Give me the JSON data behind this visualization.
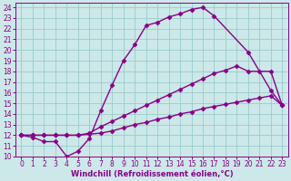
{
  "xlabel": "Windchill (Refroidissement éolien,°C)",
  "bg_color": "#cce8e8",
  "line_color": "#880088",
  "grid_color": "#99cccc",
  "xlim_min": -0.5,
  "xlim_max": 23.5,
  "ylim_min": 10,
  "ylim_max": 24.4,
  "xticks": [
    0,
    1,
    2,
    3,
    4,
    5,
    6,
    7,
    8,
    9,
    10,
    11,
    12,
    13,
    14,
    15,
    16,
    17,
    18,
    19,
    20,
    21,
    22,
    23
  ],
  "yticks": [
    10,
    11,
    12,
    13,
    14,
    15,
    16,
    17,
    18,
    19,
    20,
    21,
    22,
    23,
    24
  ],
  "line1_x": [
    0,
    1,
    2,
    3,
    4,
    5,
    6,
    7,
    8,
    9,
    10,
    11,
    12,
    13,
    14,
    15,
    16,
    17,
    20,
    22,
    23
  ],
  "line1_y": [
    12,
    11.8,
    11.4,
    11.4,
    10.0,
    10.5,
    11.7,
    14.3,
    16.7,
    19.0,
    20.5,
    22.3,
    22.6,
    23.1,
    23.4,
    23.8,
    24.0,
    23.2,
    19.8,
    16.2,
    14.8
  ],
  "line2_x": [
    0,
    1,
    2,
    3,
    4,
    5,
    6,
    7,
    8,
    9,
    10,
    11,
    12,
    13,
    14,
    15,
    16,
    17,
    18,
    19,
    20,
    21,
    22,
    23
  ],
  "line2_y": [
    12,
    12,
    12,
    12,
    12,
    12,
    12.2,
    12.8,
    13.3,
    13.8,
    14.3,
    14.8,
    15.3,
    15.8,
    16.3,
    16.8,
    17.3,
    17.8,
    18.1,
    18.5,
    18.0,
    18.0,
    18.0,
    14.8
  ],
  "line3_x": [
    0,
    1,
    2,
    3,
    4,
    5,
    6,
    7,
    8,
    9,
    10,
    11,
    12,
    13,
    14,
    15,
    16,
    17,
    18,
    19,
    20,
    21,
    22,
    23
  ],
  "line3_y": [
    12,
    12,
    12,
    12,
    12,
    12,
    12.1,
    12.2,
    12.4,
    12.7,
    13.0,
    13.2,
    13.5,
    13.7,
    14.0,
    14.2,
    14.5,
    14.7,
    14.9,
    15.1,
    15.3,
    15.5,
    15.7,
    14.8
  ],
  "marker": "D",
  "markersize": 2.5,
  "linewidth": 1.0
}
